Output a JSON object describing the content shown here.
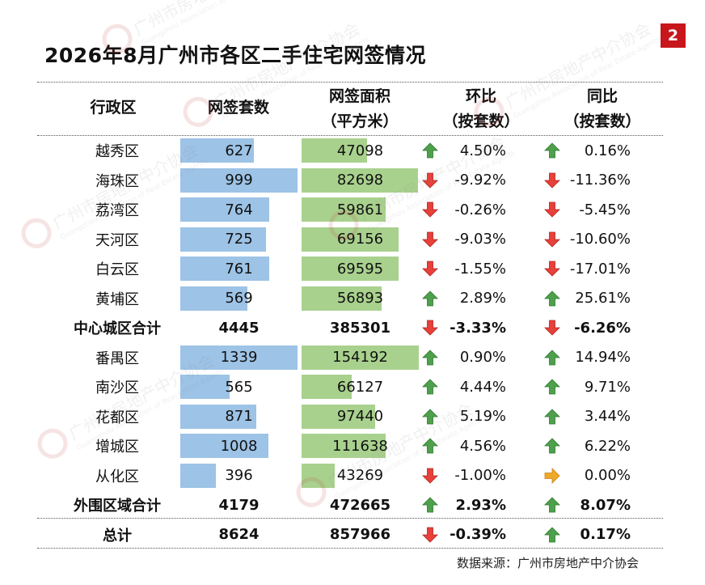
{
  "page_number": "2",
  "title": "2026年8月广州市各区二手住宅网签情况",
  "headers": {
    "district": "行政区",
    "count": "网签套数",
    "area_line1": "网签面积",
    "area_line2": "（平方米）",
    "mom_line1": "环比",
    "mom_line2": "（按套数）",
    "yoy_line1": "同比",
    "yoy_line2": "（按套数）"
  },
  "rows": [
    {
      "name": "越秀区",
      "count": "627",
      "area": "47098",
      "mom": "4.50%",
      "mom_dir": "up",
      "yoy": "0.16%",
      "yoy_dir": "up",
      "bold": false,
      "count_fill": 0.63,
      "area_fill": 0.56
    },
    {
      "name": "海珠区",
      "count": "999",
      "area": "82698",
      "mom": "-9.92%",
      "mom_dir": "down",
      "yoy": "-11.36%",
      "yoy_dir": "down",
      "bold": false,
      "count_fill": 1.0,
      "area_fill": 0.99
    },
    {
      "name": "荔湾区",
      "count": "764",
      "area": "59861",
      "mom": "-0.26%",
      "mom_dir": "down",
      "yoy": "-5.45%",
      "yoy_dir": "down",
      "bold": false,
      "count_fill": 0.76,
      "area_fill": 0.72
    },
    {
      "name": "天河区",
      "count": "725",
      "area": "69156",
      "mom": "-9.03%",
      "mom_dir": "down",
      "yoy": "-10.60%",
      "yoy_dir": "down",
      "bold": false,
      "count_fill": 0.73,
      "area_fill": 0.83
    },
    {
      "name": "白云区",
      "count": "761",
      "area": "69595",
      "mom": "-1.55%",
      "mom_dir": "down",
      "yoy": "-17.01%",
      "yoy_dir": "down",
      "bold": false,
      "count_fill": 0.76,
      "area_fill": 0.83
    },
    {
      "name": "黄埔区",
      "count": "569",
      "area": "56893",
      "mom": "2.89%",
      "mom_dir": "up",
      "yoy": "25.61%",
      "yoy_dir": "up",
      "bold": false,
      "count_fill": 0.57,
      "area_fill": 0.68
    },
    {
      "name": "中心城区合计",
      "count": "4445",
      "area": "385301",
      "mom": "-3.33%",
      "mom_dir": "down",
      "yoy": "-6.26%",
      "yoy_dir": "down",
      "bold": true
    },
    {
      "name": "番禺区",
      "count": "1339",
      "area": "154192",
      "mom": "0.90%",
      "mom_dir": "up",
      "yoy": "14.94%",
      "yoy_dir": "up",
      "bold": false,
      "count_fill": 1.0,
      "area_fill": 1.0
    },
    {
      "name": "南沙区",
      "count": "565",
      "area": "66127",
      "mom": "4.44%",
      "mom_dir": "up",
      "yoy": "9.71%",
      "yoy_dir": "up",
      "bold": false,
      "count_fill": 0.42,
      "area_fill": 0.43
    },
    {
      "name": "花都区",
      "count": "871",
      "area": "97440",
      "mom": "5.19%",
      "mom_dir": "up",
      "yoy": "3.44%",
      "yoy_dir": "up",
      "bold": false,
      "count_fill": 0.65,
      "area_fill": 0.63
    },
    {
      "name": "增城区",
      "count": "1008",
      "area": "111638",
      "mom": "4.56%",
      "mom_dir": "up",
      "yoy": "6.22%",
      "yoy_dir": "up",
      "bold": false,
      "count_fill": 0.75,
      "area_fill": 0.72
    },
    {
      "name": "从化区",
      "count": "396",
      "area": "43269",
      "mom": "-1.00%",
      "mom_dir": "down",
      "yoy": "0.00%",
      "yoy_dir": "flat",
      "bold": false,
      "count_fill": 0.3,
      "area_fill": 0.28
    },
    {
      "name": "外围区域合计",
      "count": "4179",
      "area": "472665",
      "mom": "2.93%",
      "mom_dir": "up",
      "yoy": "8.07%",
      "yoy_dir": "up",
      "bold": true
    },
    {
      "name": "总计",
      "count": "8624",
      "area": "857966",
      "mom": "-0.39%",
      "mom_dir": "down",
      "yoy": "0.17%",
      "yoy_dir": "up",
      "bold": true
    }
  ],
  "source": "数据来源：广州市房地产中介协会",
  "watermark_text": "广州市房地产中介协会",
  "watermark_text_en": "Guangzhou Association of Real Estate Agents",
  "colors": {
    "count_bar": "#9dc3e6",
    "area_bar": "#a9d18e",
    "up_arrow": "#4fa04c",
    "down_arrow": "#e8403a",
    "flat_arrow": "#f0a829",
    "page_badge": "#c8161d"
  }
}
